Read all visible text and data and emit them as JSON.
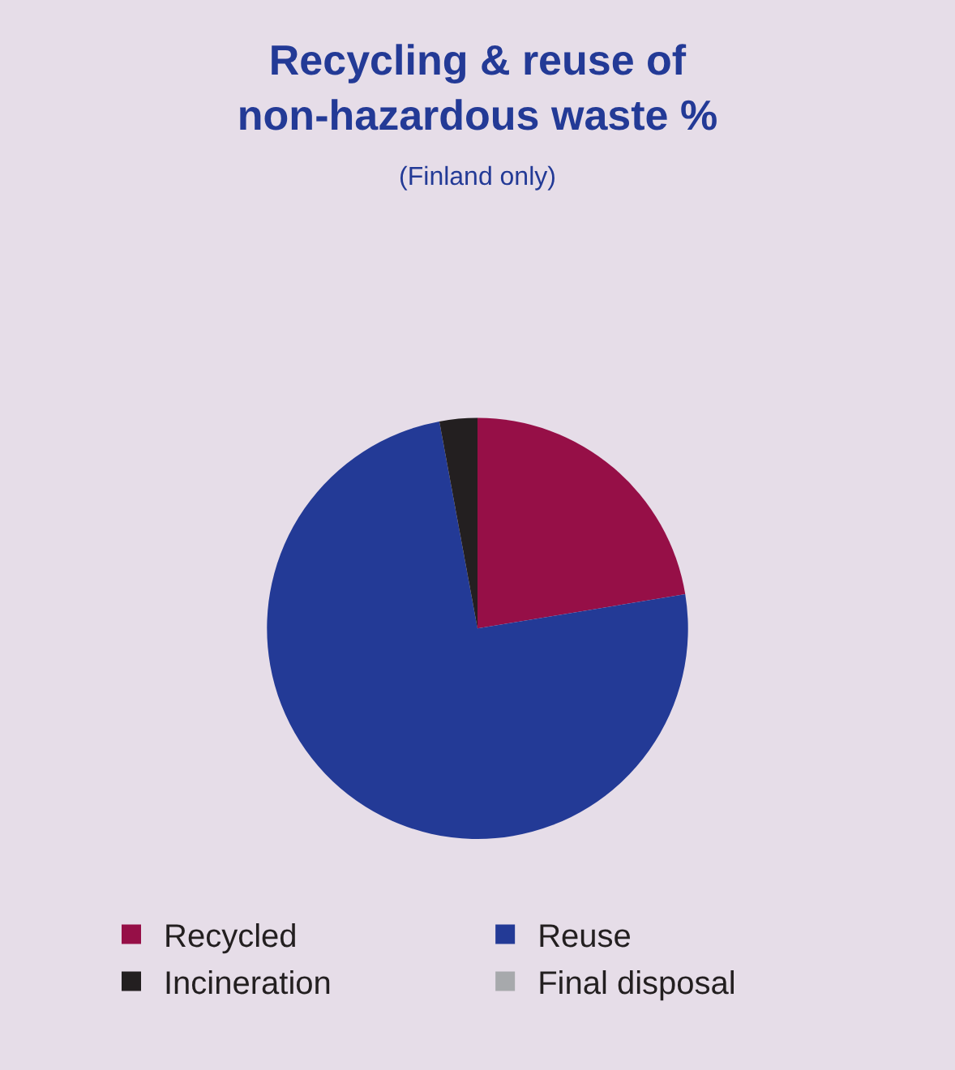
{
  "chart_data": {
    "type": "pie",
    "title": "Recycling & reuse of\nnon-hazardous waste %",
    "subtitle": "(Finland only)",
    "categories": [
      "Recycled",
      "Reuse",
      "Incineration",
      "Final disposal"
    ],
    "values": [
      22.4,
      74.7,
      2.9,
      0
    ],
    "colors": [
      "#960f47",
      "#233a96",
      "#231f20",
      "#a7a9ac"
    ],
    "legend": "bottom"
  }
}
